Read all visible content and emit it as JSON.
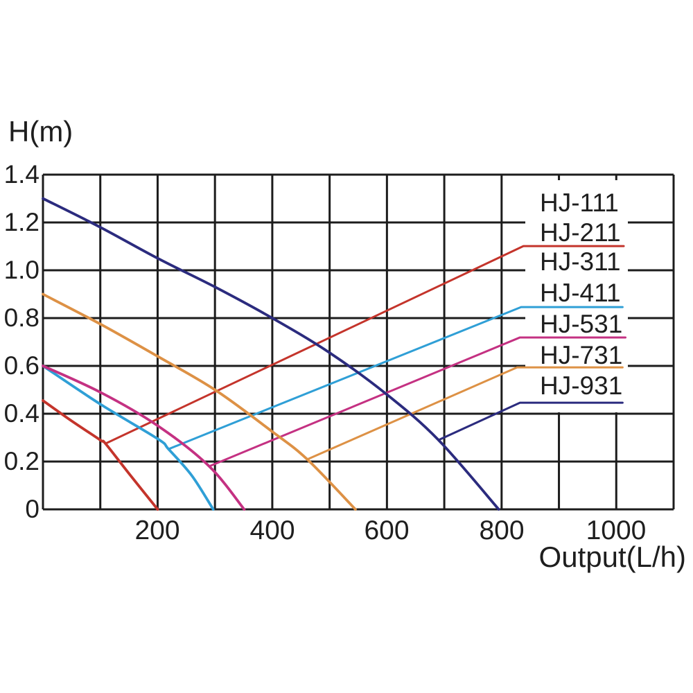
{
  "y_axis_title": "H(m)",
  "x_axis_title": "Output(L/h)",
  "colors": {
    "grid": "#1c1c1c",
    "text": "#1e1e1e",
    "legend_box": "#ffffff",
    "background": "#ffffff"
  },
  "legend": {
    "items": [
      {
        "label": "HJ-111",
        "color": null
      },
      {
        "label": "HJ-211",
        "color": "#c4342b"
      },
      {
        "label": "HJ-311",
        "color": null
      },
      {
        "label": "HJ-411",
        "color": "#2f9fd6"
      },
      {
        "label": "HJ-531",
        "color": "#c43182"
      },
      {
        "label": "HJ-731",
        "color": "#dd9145"
      },
      {
        "label": "HJ-931",
        "color": "#2b2b7e"
      }
    ]
  },
  "chart_data": {
    "type": "line",
    "title": "",
    "xlabel": "Output(L/h)",
    "ylabel": "H(m)",
    "xlim": [
      0,
      1100
    ],
    "ylim": [
      0,
      1.4
    ],
    "x_grid_step": 100,
    "y_grid_step": 0.2,
    "grid": true,
    "legend_position": "right-inside",
    "xtick_values": [
      200,
      400,
      600,
      800,
      1000
    ],
    "xtick_labels": [
      "200",
      "400",
      "600",
      "800",
      "1000"
    ],
    "ytick_values": [
      1.4,
      1.2,
      1.0,
      0.8,
      0.6,
      0.4,
      0.2,
      0
    ],
    "ytick_labels": [
      "1.4",
      "1.2",
      "1.0",
      "0.8",
      "0.6",
      "0.4",
      "0.2",
      "0"
    ],
    "series": [
      {
        "name": "HJ-211",
        "color": "#c4342b",
        "points": [
          [
            0,
            0.455
          ],
          [
            50,
            0.37
          ],
          [
            100,
            0.29
          ],
          [
            109,
            0.275
          ],
          [
            150,
            0.15
          ],
          [
            200,
            0
          ]
        ]
      },
      {
        "name": "HJ-411",
        "color": "#2f9fd6",
        "points": [
          [
            0,
            0.6
          ],
          [
            100,
            0.44
          ],
          [
            200,
            0.295
          ],
          [
            219,
            0.252
          ],
          [
            260,
            0.14
          ],
          [
            297,
            0
          ]
        ]
      },
      {
        "name": "HJ-531",
        "color": "#c43182",
        "points": [
          [
            0,
            0.6
          ],
          [
            100,
            0.49
          ],
          [
            200,
            0.35
          ],
          [
            290,
            0.18
          ],
          [
            351,
            0
          ]
        ]
      },
      {
        "name": "HJ-731",
        "color": "#dd9145",
        "points": [
          [
            0,
            0.9
          ],
          [
            100,
            0.775
          ],
          [
            200,
            0.64
          ],
          [
            300,
            0.5
          ],
          [
            400,
            0.325
          ],
          [
            461,
            0.209
          ],
          [
            545,
            0
          ]
        ]
      },
      {
        "name": "HJ-931",
        "color": "#2b2b7e",
        "points": [
          [
            0,
            1.3
          ],
          [
            100,
            1.18
          ],
          [
            200,
            1.05
          ],
          [
            300,
            0.93
          ],
          [
            400,
            0.8
          ],
          [
            500,
            0.655
          ],
          [
            600,
            0.48
          ],
          [
            690,
            0.29
          ],
          [
            795,
            0
          ]
        ]
      }
    ],
    "leader_lines": [
      {
        "series": "HJ-211",
        "color": "#c4342b",
        "points": [
          [
            109,
            0.275
          ],
          [
            838,
            1.101
          ],
          [
            1013,
            1.101
          ]
        ]
      },
      {
        "series": "HJ-411",
        "color": "#2f9fd6",
        "points": [
          [
            219,
            0.252
          ],
          [
            834,
            0.846
          ],
          [
            1011,
            0.846
          ]
        ]
      },
      {
        "series": "HJ-531",
        "color": "#c43182",
        "points": [
          [
            290,
            0.18
          ],
          [
            832,
            0.719
          ],
          [
            1016,
            0.719
          ]
        ]
      },
      {
        "series": "HJ-731",
        "color": "#dd9145",
        "points": [
          [
            461,
            0.209
          ],
          [
            827,
            0.594
          ],
          [
            1011,
            0.594
          ]
        ]
      },
      {
        "series": "HJ-931",
        "color": "#2b2b7e",
        "points": [
          [
            690,
            0.29
          ],
          [
            832,
            0.446
          ],
          [
            1011,
            0.446
          ]
        ]
      }
    ]
  }
}
